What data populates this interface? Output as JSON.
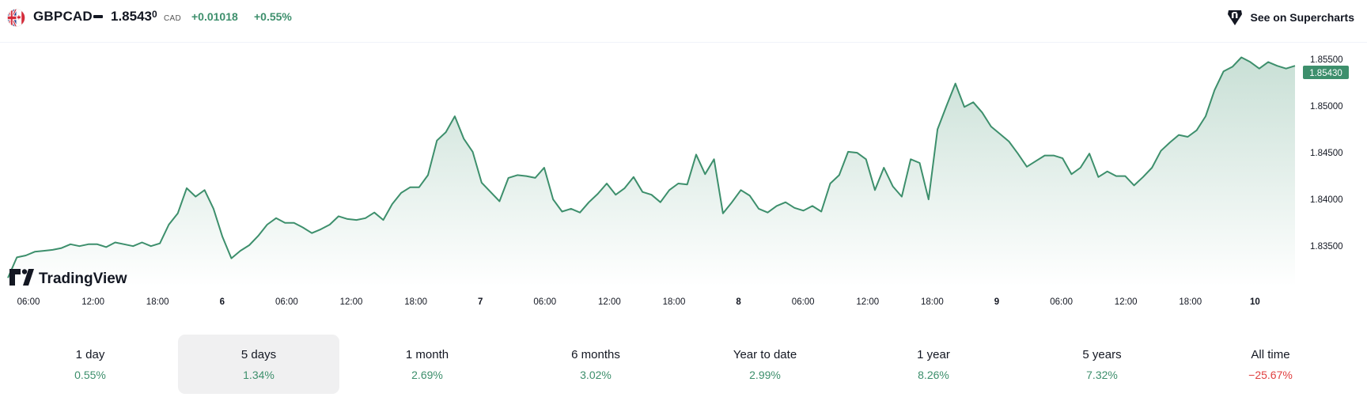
{
  "header": {
    "symbol": "GBPCAD",
    "price_main": "1.8543",
    "price_small": "0",
    "currency": "CAD",
    "change": "+0.01018",
    "change_pct": "+0.55%",
    "supercharts_label": "See on Supercharts",
    "flag_icon": "gb-ca-flag-icon",
    "supercharts_icon": "tradingview-supercharts-icon",
    "accent_color": "#3d8f6c"
  },
  "branding": {
    "logo_text": "TradingView"
  },
  "price_tag": "1.85430",
  "chart_data": {
    "type": "area",
    "title": "",
    "xlabel": "",
    "ylabel": "",
    "x_ticks": [
      "06:00",
      "12:00",
      "18:00",
      "6",
      "06:00",
      "12:00",
      "18:00",
      "7",
      "06:00",
      "12:00",
      "18:00",
      "8",
      "06:00",
      "12:00",
      "18:00",
      "9",
      "06:00",
      "12:00",
      "18:00",
      "10"
    ],
    "y_ticks": [
      "1.83500",
      "1.84000",
      "1.84500",
      "1.85000",
      "1.85500"
    ],
    "ylim": [
      1.8307,
      1.8566
    ],
    "line_color": "#3d8f6c",
    "fill_color": "#d9ece4",
    "grid": false,
    "last_value": 1.8543,
    "series": [
      {
        "values": [
          1.8316,
          1.8338,
          1.834,
          1.8344,
          1.8345,
          1.8346,
          1.8348,
          1.8352,
          1.835,
          1.8352,
          1.8352,
          1.8349,
          1.8354,
          1.8352,
          1.835,
          1.8354,
          1.835,
          1.8353,
          1.8373,
          1.8385,
          1.8412,
          1.8403,
          1.841,
          1.839,
          1.836,
          1.8337,
          1.8345,
          1.8351,
          1.8361,
          1.8373,
          1.838,
          1.8375,
          1.8375,
          1.837,
          1.8364,
          1.8368,
          1.8373,
          1.8382,
          1.8379,
          1.8378,
          1.838,
          1.8386,
          1.8378,
          1.8395,
          1.8407,
          1.8413,
          1.8413,
          1.8426,
          1.8463,
          1.8472,
          1.8489,
          1.8465,
          1.8451,
          1.8418,
          1.8408,
          1.8398,
          1.8423,
          1.8426,
          1.8425,
          1.8423,
          1.8434,
          1.84,
          1.8387,
          1.839,
          1.8386,
          1.8397,
          1.8406,
          1.8417,
          1.8405,
          1.8412,
          1.8424,
          1.8408,
          1.8405,
          1.8397,
          1.841,
          1.8417,
          1.8416,
          1.8448,
          1.8427,
          1.8443,
          1.8385,
          1.8397,
          1.841,
          1.8404,
          1.839,
          1.8386,
          1.8393,
          1.8397,
          1.8391,
          1.8388,
          1.8393,
          1.8387,
          1.8417,
          1.8426,
          1.8451,
          1.845,
          1.8443,
          1.841,
          1.8434,
          1.8414,
          1.8403,
          1.8443,
          1.8439,
          1.84,
          1.8475,
          1.85,
          1.8524,
          1.8499,
          1.8504,
          1.8493,
          1.8478,
          1.847,
          1.8462,
          1.8449,
          1.8435,
          1.8441,
          1.8447,
          1.8447,
          1.8444,
          1.8427,
          1.8434,
          1.8449,
          1.8424,
          1.843,
          1.8425,
          1.8425,
          1.8415,
          1.8424,
          1.8434,
          1.8452,
          1.8461,
          1.8469,
          1.8467,
          1.8474,
          1.8489,
          1.8517,
          1.8537,
          1.8542,
          1.8552,
          1.8547,
          1.854,
          1.8547,
          1.8543,
          1.854,
          1.8543
        ]
      }
    ]
  },
  "tabs": [
    {
      "label": "1 day",
      "value": "0.55%"
    },
    {
      "label": "5 days",
      "value": "1.34%"
    },
    {
      "label": "1 month",
      "value": "2.69%"
    },
    {
      "label": "6 months",
      "value": "3.02%"
    },
    {
      "label": "Year to date",
      "value": "2.99%"
    },
    {
      "label": "1 year",
      "value": "8.26%"
    },
    {
      "label": "5 years",
      "value": "7.32%"
    },
    {
      "label": "All time",
      "value": "−25.67%"
    }
  ]
}
